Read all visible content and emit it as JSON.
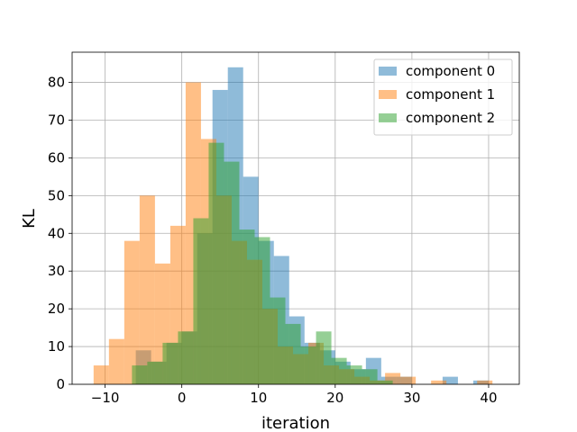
{
  "chart_data": {
    "type": "histogram",
    "xlabel": "iteration",
    "ylabel": "KL",
    "xlim": [
      -14.3,
      44
    ],
    "ylim": [
      0,
      88
    ],
    "xticks": [
      -10,
      0,
      10,
      20,
      30,
      40
    ],
    "yticks": [
      0,
      10,
      20,
      30,
      40,
      50,
      60,
      70,
      80
    ],
    "grid": true,
    "legend_position": "top-right",
    "series": [
      {
        "name": "component 0",
        "color": "#1f77b4",
        "bins": [
          [
            -6,
            -4,
            9
          ],
          [
            -4,
            -2,
            6
          ],
          [
            -2,
            0,
            11
          ],
          [
            0,
            2,
            14
          ],
          [
            2,
            4,
            40
          ],
          [
            4,
            6,
            78
          ],
          [
            6,
            8,
            84
          ],
          [
            8,
            10,
            55
          ],
          [
            10,
            12,
            38
          ],
          [
            12,
            14,
            34
          ],
          [
            14,
            16,
            18
          ],
          [
            16,
            18,
            11
          ],
          [
            18,
            20,
            9
          ],
          [
            20,
            22,
            6
          ],
          [
            22,
            24,
            4
          ],
          [
            24,
            26,
            7
          ],
          [
            26,
            28,
            2
          ],
          [
            28,
            30,
            2
          ],
          [
            34,
            36,
            2
          ],
          [
            38,
            40,
            1
          ]
        ]
      },
      {
        "name": "component 1",
        "color": "#ff7f0e",
        "bins": [
          [
            -11.5,
            -9.5,
            5
          ],
          [
            -9.5,
            -7.5,
            12
          ],
          [
            -7.5,
            -5.5,
            38
          ],
          [
            -5.5,
            -3.5,
            50
          ],
          [
            -3.5,
            -1.5,
            32
          ],
          [
            -1.5,
            0.5,
            42
          ],
          [
            0.5,
            2.5,
            80
          ],
          [
            2.5,
            4.5,
            65
          ],
          [
            4.5,
            6.5,
            50
          ],
          [
            6.5,
            8.5,
            38
          ],
          [
            8.5,
            10.5,
            33
          ],
          [
            10.5,
            12.5,
            20
          ],
          [
            12.5,
            14.5,
            10
          ],
          [
            14.5,
            16.5,
            8
          ],
          [
            16.5,
            18.5,
            11
          ],
          [
            18.5,
            20.5,
            5
          ],
          [
            20.5,
            22.5,
            4
          ],
          [
            22.5,
            24.5,
            2
          ],
          [
            24.5,
            26.5,
            1
          ],
          [
            26.5,
            28.5,
            3
          ],
          [
            28.5,
            30.5,
            2
          ],
          [
            32.5,
            34.5,
            1
          ],
          [
            38.5,
            40.5,
            1
          ]
        ]
      },
      {
        "name": "component 2",
        "color": "#2ca02c",
        "bins": [
          [
            -6.5,
            -4.5,
            5
          ],
          [
            -4.5,
            -2.5,
            6
          ],
          [
            -2.5,
            -0.5,
            11
          ],
          [
            -0.5,
            1.5,
            14
          ],
          [
            1.5,
            3.5,
            44
          ],
          [
            3.5,
            5.5,
            64
          ],
          [
            5.5,
            7.5,
            59
          ],
          [
            7.5,
            9.5,
            41
          ],
          [
            9.5,
            11.5,
            39
          ],
          [
            11.5,
            13.5,
            23
          ],
          [
            13.5,
            15.5,
            16
          ],
          [
            15.5,
            17.5,
            10
          ],
          [
            17.5,
            19.5,
            14
          ],
          [
            19.5,
            21.5,
            7
          ],
          [
            21.5,
            23.5,
            5
          ],
          [
            23.5,
            25.5,
            4
          ],
          [
            25.5,
            27.5,
            1
          ]
        ]
      }
    ]
  }
}
